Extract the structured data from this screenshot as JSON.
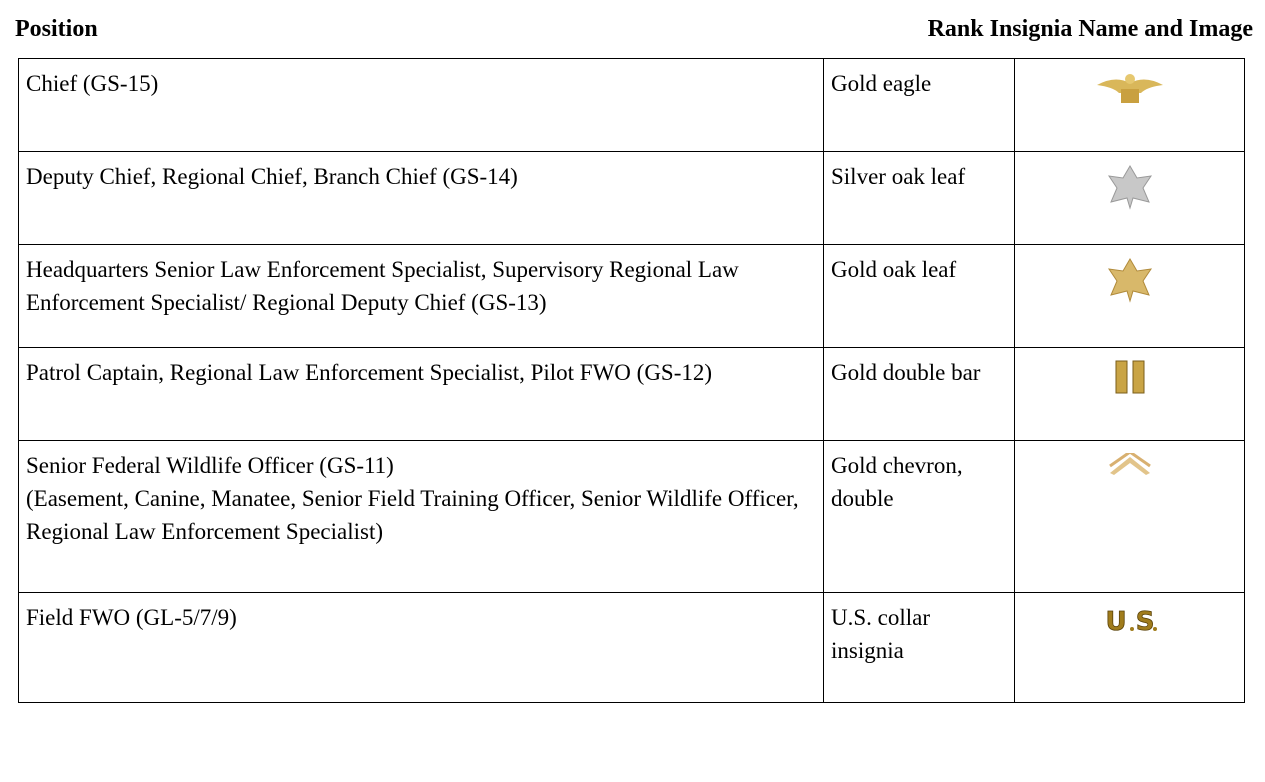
{
  "header": {
    "position": "Position",
    "rank": "Rank Insignia Name and Image"
  },
  "table": {
    "rows": [
      [
        "Chief (GS-15)",
        "Gold eagle"
      ],
      [
        "Deputy Chief, Regional Chief, Branch Chief (GS-14)",
        "Silver oak leaf"
      ],
      [
        "Headquarters Senior Law Enforcement Specialist, Supervisory Regional Law Enforcement Specialist/ Regional Deputy Chief (GS-13)",
        "Gold oak leaf"
      ],
      [
        "Patrol Captain, Regional Law Enforcement Specialist, Pilot FWO (GS-12)",
        "Gold double bar"
      ],
      [
        "Senior Federal Wildlife Officer (GS-11)\n(Easement, Canine, Manatee, Senior Field Training Officer, Senior Wildlife Officer, Regional Law Enforcement Specialist)",
        "Gold chevron, double"
      ],
      [
        "Field FWO (GL-5/7/9)",
        "U.S. collar insignia"
      ]
    ]
  }
}
